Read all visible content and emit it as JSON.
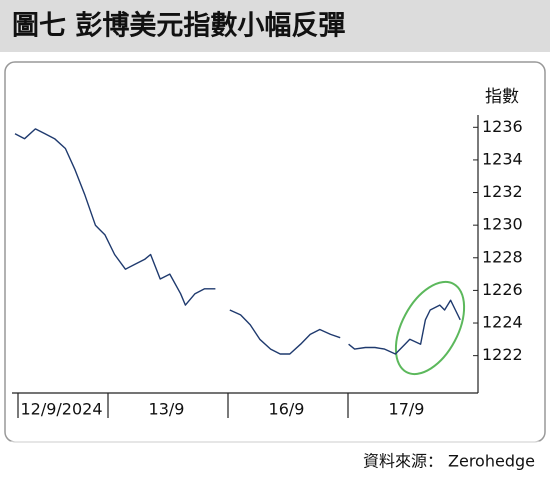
{
  "chart_data": {
    "type": "line",
    "title": "圖七  彭博美元指數小幅反彈",
    "y_axis_label": "指數",
    "source": "資料來源： Zerohedge",
    "x": [
      0.25,
      0.33,
      0.42,
      0.5,
      0.58,
      0.67,
      0.75,
      0.83,
      0.92,
      0.96,
      1.0,
      1.08,
      1.17,
      1.25,
      1.33,
      1.38,
      1.46,
      1.54,
      1.63,
      1.67,
      1.75,
      1.83,
      1.92,
      2.0,
      2.04,
      2.13,
      2.21,
      2.29,
      2.38,
      2.46,
      2.54,
      2.63,
      2.71,
      2.79,
      2.88,
      2.96,
      3.0,
      3.03,
      3.08,
      3.17,
      3.25,
      3.33,
      3.42,
      3.5,
      3.54,
      3.63,
      3.67,
      3.71,
      3.79,
      3.83,
      3.88,
      3.92,
      3.96
    ],
    "values": [
      1235.6,
      1235.3,
      1235.9,
      1235.6,
      1235.3,
      1234.7,
      1233.4,
      1231.9,
      1230.0,
      1229.7,
      1229.4,
      1228.2,
      1227.3,
      1227.6,
      1227.9,
      1228.2,
      1226.7,
      1227.0,
      1225.8,
      1225.1,
      1225.8,
      1226.1,
      1226.1,
      null,
      1224.8,
      1224.5,
      1223.9,
      1223.0,
      1222.4,
      1222.1,
      1222.1,
      1222.7,
      1223.3,
      1223.6,
      1223.3,
      1223.1,
      null,
      1222.7,
      1222.4,
      1222.5,
      1222.5,
      1222.4,
      1222.1,
      1222.7,
      1223.0,
      1222.7,
      1224.2,
      1224.8,
      1225.1,
      1224.8,
      1225.4,
      1224.8,
      1224.2
    ],
    "color": "#1f3a6e",
    "xlim": [
      0.25,
      4.0
    ],
    "xticks": [
      {
        "value": 0,
        "label": "12/9/2024"
      },
      {
        "value": 1,
        "label": "13/9"
      },
      {
        "value": 2,
        "label": "16/9"
      },
      {
        "value": 3,
        "label": "17/9"
      }
    ],
    "ylim": [
      1220.2,
      1238.9
    ],
    "yticks": [
      1222,
      1224,
      1226,
      1228,
      1230,
      1232,
      1234,
      1236
    ],
    "grid": false
  }
}
